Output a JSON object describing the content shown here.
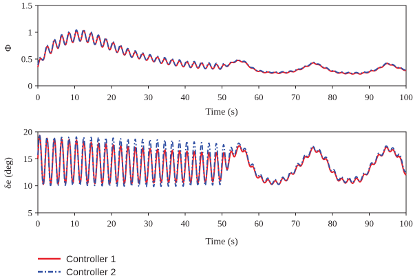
{
  "legend": {
    "items": [
      {
        "label": "Controller 1",
        "color": "#e8202a",
        "dash": "solid"
      },
      {
        "label": "Controller 2",
        "color": "#2f4fa3",
        "dash": "dashdot"
      }
    ]
  },
  "chart_data": [
    {
      "type": "line",
      "title": "",
      "xlabel": "Time (s)",
      "ylabel": "Φ",
      "xlim": [
        0,
        100
      ],
      "ylim": [
        0,
        1.5
      ],
      "xticks": [
        "0",
        "10",
        "20",
        "30",
        "40",
        "50",
        "60",
        "70",
        "80",
        "90",
        "100"
      ],
      "yticks": [
        "0",
        "0.5",
        "1",
        "1.5"
      ],
      "grid": false,
      "series": [
        {
          "name": "Controller 1",
          "x": [
            0,
            1,
            2,
            3,
            4,
            5,
            6,
            8,
            10,
            12,
            14,
            16,
            18,
            20,
            25,
            30,
            35,
            40,
            45,
            50,
            52,
            54,
            56,
            58,
            60,
            62,
            65,
            68,
            70,
            72,
            75,
            78,
            80,
            82,
            85,
            88,
            90,
            92,
            95,
            98,
            100
          ],
          "y": [
            0.35,
            0.5,
            0.62,
            0.68,
            0.72,
            0.78,
            0.82,
            0.88,
            0.92,
            0.94,
            0.9,
            0.85,
            0.8,
            0.74,
            0.6,
            0.52,
            0.45,
            0.4,
            0.37,
            0.35,
            0.4,
            0.47,
            0.45,
            0.33,
            0.27,
            0.25,
            0.24,
            0.25,
            0.28,
            0.33,
            0.43,
            0.33,
            0.27,
            0.24,
            0.23,
            0.23,
            0.26,
            0.3,
            0.42,
            0.33,
            0.29
          ],
          "oscillation_amplitude": [
            0.05,
            0.07,
            0.08,
            0.09,
            0.1,
            0.1,
            0.1,
            0.1,
            0.1,
            0.1,
            0.1,
            0.09,
            0.09,
            0.08,
            0.06,
            0.05,
            0.05,
            0.05,
            0.05,
            0.04,
            0.02,
            0.01,
            0.01,
            0.01,
            0.01,
            0.01,
            0.01,
            0.01,
            0.01,
            0.01,
            0.01,
            0.01,
            0.01,
            0.01,
            0.01,
            0.01,
            0.01,
            0.01,
            0.01,
            0.01,
            0.01
          ],
          "oscillation_period": 2.0
        },
        {
          "name": "Controller 2",
          "x": [
            0,
            1,
            2,
            3,
            4,
            5,
            6,
            8,
            10,
            12,
            14,
            16,
            18,
            20,
            25,
            30,
            35,
            40,
            45,
            50,
            52,
            54,
            56,
            58,
            60,
            62,
            65,
            68,
            70,
            72,
            75,
            78,
            80,
            82,
            85,
            88,
            90,
            92,
            95,
            98,
            100
          ],
          "y": [
            0.38,
            0.52,
            0.63,
            0.69,
            0.73,
            0.79,
            0.83,
            0.89,
            0.93,
            0.95,
            0.91,
            0.86,
            0.81,
            0.75,
            0.61,
            0.53,
            0.46,
            0.41,
            0.38,
            0.36,
            0.41,
            0.48,
            0.46,
            0.34,
            0.28,
            0.26,
            0.25,
            0.26,
            0.29,
            0.34,
            0.44,
            0.34,
            0.28,
            0.25,
            0.24,
            0.24,
            0.27,
            0.31,
            0.43,
            0.34,
            0.3
          ],
          "oscillation_amplitude": [
            0.06,
            0.08,
            0.09,
            0.1,
            0.11,
            0.11,
            0.11,
            0.11,
            0.11,
            0.11,
            0.11,
            0.1,
            0.1,
            0.09,
            0.07,
            0.06,
            0.06,
            0.06,
            0.06,
            0.05,
            0.02,
            0.01,
            0.01,
            0.01,
            0.01,
            0.01,
            0.01,
            0.01,
            0.01,
            0.01,
            0.01,
            0.01,
            0.01,
            0.01,
            0.01,
            0.01,
            0.01,
            0.01,
            0.01,
            0.01,
            0.01
          ],
          "oscillation_period": 2.0
        }
      ]
    },
    {
      "type": "line",
      "title": "",
      "xlabel": "Time (s)",
      "ylabel": "δe (deg)",
      "xlim": [
        0,
        100
      ],
      "ylim": [
        5,
        20
      ],
      "xticks": [
        "0",
        "10",
        "20",
        "30",
        "40",
        "50",
        "60",
        "70",
        "80",
        "90",
        "100"
      ],
      "yticks": [
        "5",
        "10",
        "15",
        "20"
      ],
      "grid": false,
      "series": [
        {
          "name": "Controller 1",
          "x": [
            0,
            2,
            5,
            10,
            15,
            20,
            25,
            30,
            35,
            40,
            45,
            50,
            52,
            54,
            55,
            56,
            58,
            60,
            62,
            65,
            68,
            70,
            72,
            75,
            78,
            80,
            82,
            85,
            88,
            90,
            92,
            95,
            98,
            100
          ],
          "y": [
            15,
            14.5,
            14.5,
            14.5,
            14.2,
            14,
            13.8,
            13.7,
            13.6,
            13.5,
            13.4,
            13.5,
            15,
            16.5,
            17.2,
            16.5,
            13.5,
            11.5,
            10.8,
            10.5,
            11.5,
            13,
            14.5,
            17,
            15,
            12.5,
            11,
            10.8,
            11.2,
            13,
            15,
            17,
            15.5,
            12
          ],
          "oscillation_amplitude": [
            4.5,
            4.3,
            4.2,
            4.0,
            3.8,
            3.6,
            3.4,
            3.2,
            3.0,
            2.9,
            2.8,
            2.6,
            1.2,
            0.5,
            0.5,
            0.5,
            0.5,
            0.4,
            0.4,
            0.4,
            0.4,
            0.4,
            0.4,
            0.4,
            0.4,
            0.4,
            0.4,
            0.4,
            0.4,
            0.4,
            0.4,
            0.4,
            0.4,
            0.4
          ],
          "oscillation_period": 2.0
        },
        {
          "name": "Controller 2",
          "x": [
            0,
            2,
            5,
            10,
            15,
            20,
            25,
            30,
            35,
            40,
            45,
            50,
            52,
            54,
            55,
            56,
            58,
            60,
            62,
            65,
            68,
            70,
            72,
            75,
            78,
            80,
            82,
            85,
            88,
            90,
            92,
            95,
            98,
            100
          ],
          "y": [
            15,
            14.5,
            14.5,
            14.6,
            14.5,
            14.4,
            14.3,
            14.2,
            14.2,
            14.1,
            14.0,
            14.0,
            15.5,
            17,
            17.6,
            16.8,
            13.8,
            11.8,
            11,
            10.6,
            11.6,
            13.2,
            14.8,
            17.2,
            15.2,
            12.8,
            11.2,
            11,
            11.4,
            13.2,
            15.2,
            17.2,
            15.8,
            12.5
          ],
          "oscillation_amplitude": [
            4.6,
            4.5,
            4.5,
            4.5,
            4.5,
            4.5,
            4.4,
            4.4,
            4.3,
            4.2,
            4.0,
            3.8,
            1.5,
            0.6,
            0.6,
            0.6,
            0.6,
            0.5,
            0.5,
            0.5,
            0.5,
            0.5,
            0.5,
            0.5,
            0.5,
            0.5,
            0.5,
            0.5,
            0.5,
            0.5,
            0.5,
            0.5,
            0.5,
            0.5
          ],
          "oscillation_period": 2.0
        }
      ]
    }
  ]
}
